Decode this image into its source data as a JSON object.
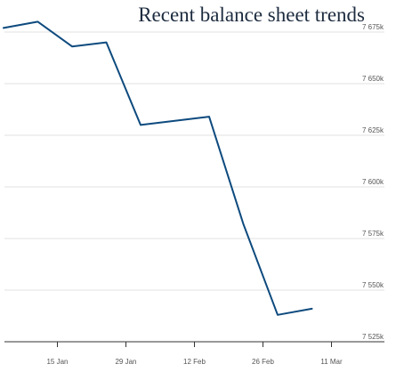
{
  "chart_data": {
    "type": "line",
    "title": "Recent balance sheet trends",
    "xlabel": "",
    "ylabel": "",
    "x": [
      "8 Jan",
      "15 Jan",
      "22 Jan",
      "29 Jan",
      "5 Feb",
      "12 Feb",
      "19 Feb",
      "26 Feb",
      "5 Mar",
      "11 Mar"
    ],
    "series": [
      {
        "name": "",
        "color": "#0d4a7e",
        "values": [
          7677000,
          7680000,
          7668000,
          7670000,
          7630000,
          7632000,
          7634000,
          7582000,
          7538000,
          7541000
        ]
      }
    ],
    "point_x_days": [
      3,
      10,
      17,
      24,
      31,
      38,
      45,
      52,
      59,
      66
    ],
    "x_ticks": [
      {
        "label": "15 Jan",
        "day": 14
      },
      {
        "label": "29 Jan",
        "day": 28
      },
      {
        "label": "12 Feb",
        "day": 42
      },
      {
        "label": "26 Feb",
        "day": 56
      },
      {
        "label": "11 Mar",
        "day": 70
      }
    ],
    "y_ticks": [
      {
        "label": "7 525k",
        "value": 7525000
      },
      {
        "label": "7 550k",
        "value": 7550000
      },
      {
        "label": "7 575k",
        "value": 7575000
      },
      {
        "label": "7 600k",
        "value": 7600000
      },
      {
        "label": "7 625k",
        "value": 7625000
      },
      {
        "label": "7 650k",
        "value": 7650000
      },
      {
        "label": "7 675k",
        "value": 7675000
      }
    ],
    "ylim": [
      7525000,
      7680000
    ],
    "grid": true,
    "legend": "none"
  }
}
